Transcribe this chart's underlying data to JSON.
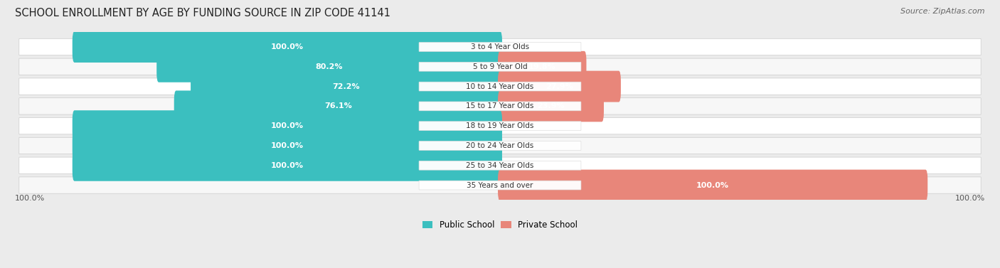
{
  "title": "SCHOOL ENROLLMENT BY AGE BY FUNDING SOURCE IN ZIP CODE 41141",
  "source": "Source: ZipAtlas.com",
  "categories": [
    "3 to 4 Year Olds",
    "5 to 9 Year Old",
    "10 to 14 Year Olds",
    "15 to 17 Year Olds",
    "18 to 19 Year Olds",
    "20 to 24 Year Olds",
    "25 to 34 Year Olds",
    "35 Years and over"
  ],
  "public_values": [
    100.0,
    80.2,
    72.2,
    76.1,
    100.0,
    100.0,
    100.0,
    0.0
  ],
  "private_values": [
    0.0,
    19.8,
    27.9,
    23.9,
    0.0,
    0.0,
    0.0,
    100.0
  ],
  "public_color": "#3BBFBF",
  "private_color": "#E8867A",
  "public_color_faint": "#B0E0E0",
  "background_color": "#EBEBEB",
  "row_color_odd": "#F7F7F7",
  "row_color_even": "#FFFFFF",
  "title_fontsize": 10.5,
  "source_fontsize": 8,
  "value_fontsize": 8,
  "label_fontsize": 7.5,
  "bar_height": 0.58,
  "xlim_left": -115,
  "xlim_right": 115
}
